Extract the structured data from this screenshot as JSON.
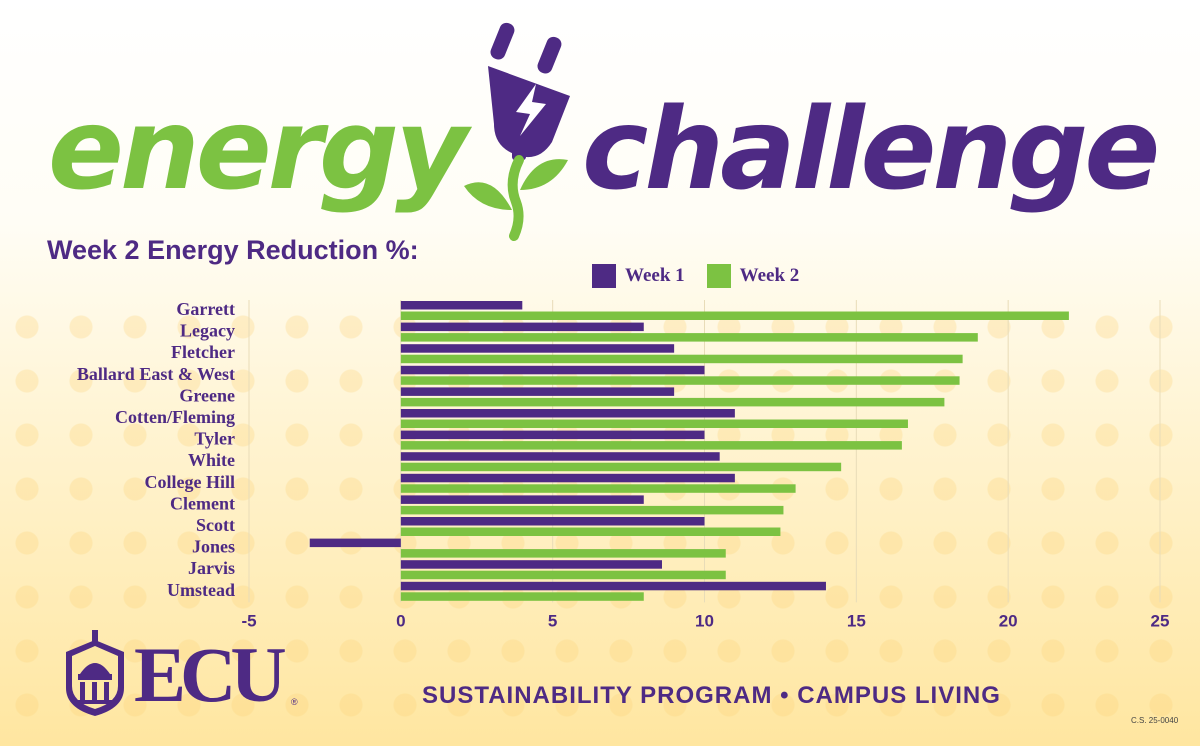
{
  "header": {
    "word1": "energy",
    "word2": "challenge"
  },
  "colors": {
    "purple": "#4e2a84",
    "green": "#7cc242"
  },
  "icons": [
    "plug-icon",
    "leaf-icon",
    "ecu-crest-icon"
  ],
  "chart_data": {
    "type": "bar",
    "orientation": "horizontal",
    "title": "Week 2 Energy Reduction %:",
    "categories": [
      "Garrett",
      "Legacy",
      "Fletcher",
      "Ballard East & West",
      "Greene",
      "Cotten/Fleming",
      "Tyler",
      "White",
      "College Hill",
      "Clement",
      "Scott",
      "Jones",
      "Jarvis",
      "Umstead"
    ],
    "series": [
      {
        "name": "Week 1",
        "color": "#4e2a84",
        "values": [
          4,
          8,
          9,
          10,
          9,
          11,
          10,
          10.5,
          11,
          8,
          10,
          -3,
          8.6,
          14
        ]
      },
      {
        "name": "Week 2",
        "color": "#7cc242",
        "values": [
          22,
          19,
          18.5,
          18.4,
          17.9,
          16.7,
          16.5,
          14.5,
          13,
          12.6,
          12.5,
          10.7,
          10.7,
          8
        ]
      }
    ],
    "xlim": [
      -5,
      25
    ],
    "xticks": [
      "-5",
      "0",
      "5",
      "10",
      "15",
      "20",
      "25"
    ],
    "grid": true,
    "legend": "top"
  },
  "footer": {
    "logo_text": "ECU",
    "registered": "®",
    "program": "SUSTAINABILITY PROGRAM • CAMPUS LIVING",
    "code": "C.S. 25-0040"
  }
}
